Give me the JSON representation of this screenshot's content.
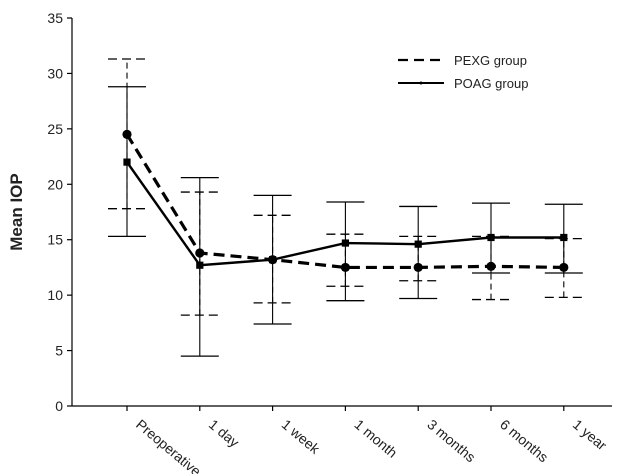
{
  "chart_data": {
    "type": "line",
    "title": "",
    "xlabel": "",
    "ylabel": "Mean IOP",
    "ylim": [
      0,
      35
    ],
    "yticks": [
      0,
      5,
      10,
      15,
      20,
      25,
      30,
      35
    ],
    "categories": [
      "Preoperative",
      "1 day",
      "1 week",
      "1 month",
      "3 months",
      "6 months",
      "1 year"
    ],
    "grid": false,
    "legend_position": "top-right",
    "series": [
      {
        "name": "PEXG group",
        "line_style": "dashed",
        "marker": "circle",
        "color": "#000000",
        "values": [
          24.5,
          13.8,
          13.2,
          12.5,
          12.5,
          12.6,
          12.5
        ],
        "error_low": [
          17.8,
          8.2,
          9.3,
          10.8,
          11.3,
          9.6,
          9.8
        ],
        "error_high": [
          31.3,
          19.3,
          17.2,
          15.5,
          15.3,
          15.3,
          15.1
        ]
      },
      {
        "name": "POAG group",
        "line_style": "solid",
        "marker": "square",
        "color": "#000000",
        "values": [
          22.0,
          12.7,
          13.2,
          14.7,
          14.6,
          15.2,
          15.2
        ],
        "error_low": [
          15.3,
          4.5,
          7.4,
          9.5,
          9.7,
          12.0,
          12.0
        ],
        "error_high": [
          28.8,
          20.6,
          19.0,
          18.4,
          18.0,
          18.3,
          18.2
        ]
      }
    ]
  }
}
